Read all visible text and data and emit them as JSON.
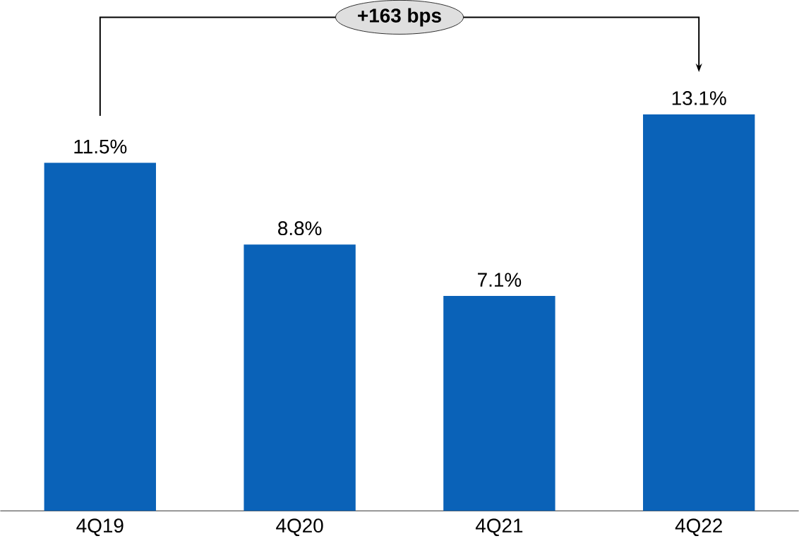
{
  "chart_data": {
    "type": "bar",
    "categories": [
      "4Q19",
      "4Q20",
      "4Q21",
      "4Q22"
    ],
    "values": [
      11.5,
      8.8,
      7.1,
      13.1
    ],
    "value_labels": [
      "11.5%",
      "8.8%",
      "7.1%",
      "13.1%"
    ],
    "color": "#0a62b8",
    "annotations": [
      "**+163 bps**"
    ]
  }
}
